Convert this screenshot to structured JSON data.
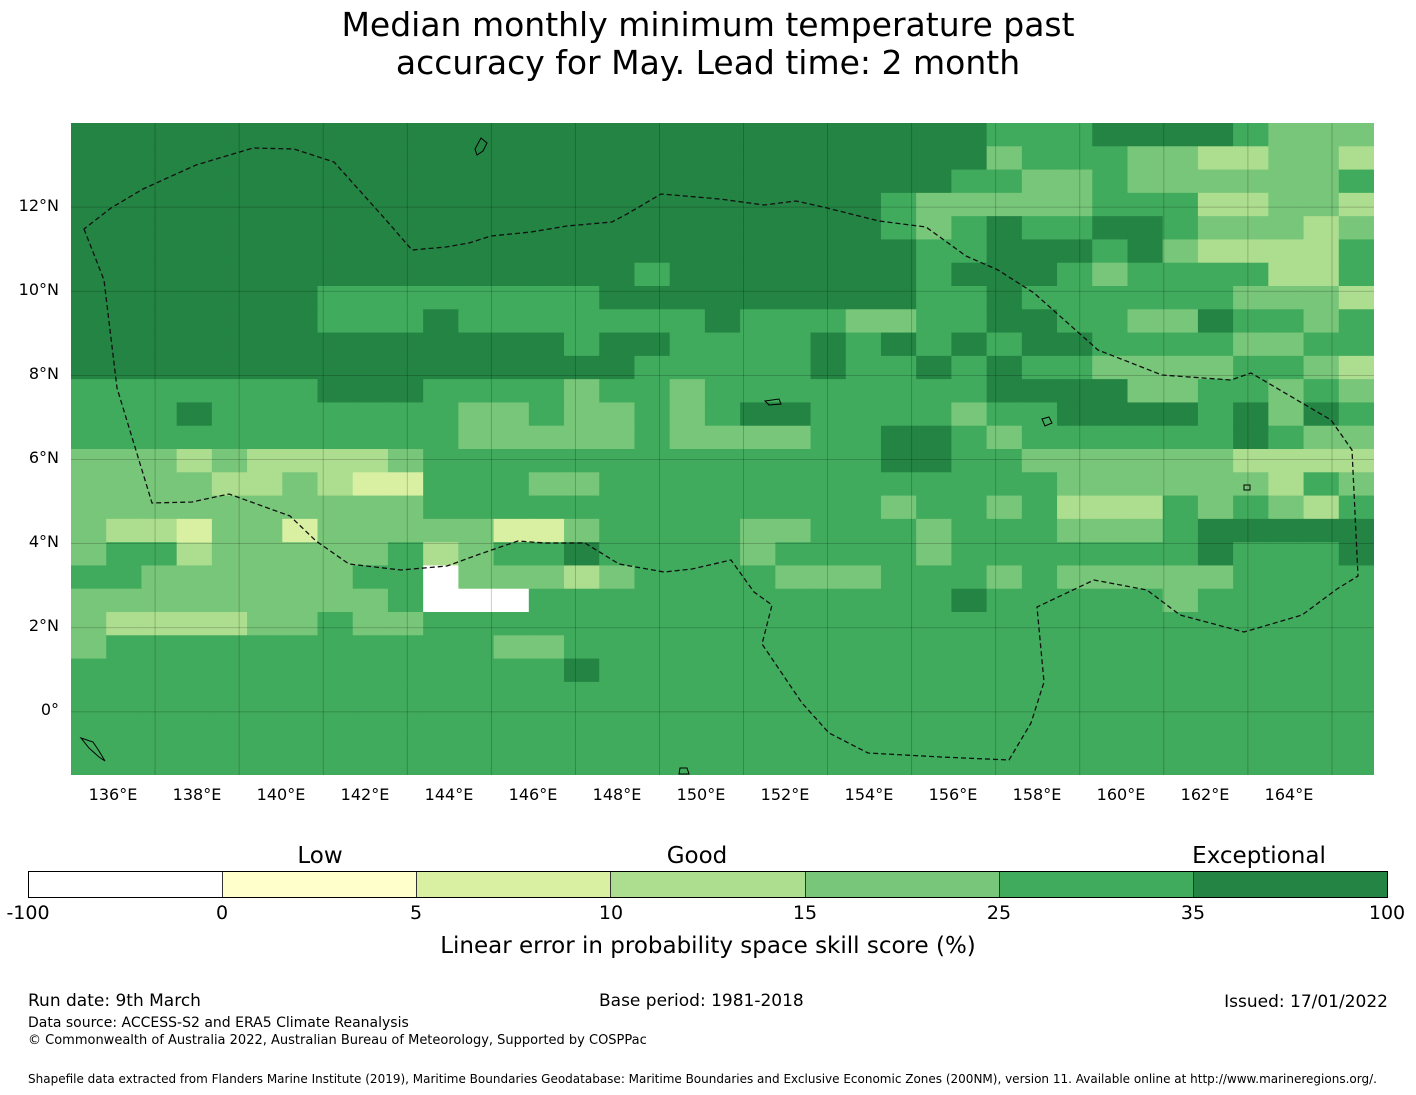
{
  "title": {
    "line1": "Median monthly minimum temperature past",
    "line2": "accuracy for May. Lead time: 2 month"
  },
  "map": {
    "lat_labels": [
      "12°N",
      "10°N",
      "8°N",
      "6°N",
      "4°N",
      "2°N",
      "0°"
    ],
    "lon_labels": [
      "136°E",
      "138°E",
      "140°E",
      "142°E",
      "144°E",
      "146°E",
      "148°E",
      "150°E",
      "152°E",
      "154°E",
      "156°E",
      "158°E",
      "160°E",
      "162°E",
      "164°E"
    ],
    "extent": {
      "lon_min": 134.0,
      "lon_max": 165.0,
      "lat_min": -1.5,
      "lat_max": 14.0
    },
    "grid_size": {
      "cols": 37,
      "rows": 28
    },
    "skill_grid_codes": [
      "6666666666666666666666666655566665444",
      "6666666666666666666666666645554433443",
      "6666666666666666666666666554454444445",
      "6666666666666666666666654444455533443",
      "6666666666666666666666654565566544434",
      "6666666666666666666666665566656433335",
      "6666666666666666566666665666545555335",
      "6666666555555556666666665565555554443",
      "6666666555655555556555445566554465545",
      "6666666666666656655556565656655554455",
      "6666666666666666555556556565544445543",
      "5555555666555545545555555566664455454",
      "5556555555544544545665555455666656465",
      "5555555555544444544445566545555556544",
      "4443433334555555555555566554444443333",
      "4444334322555445555555555555444444354",
      "4444444444555555555555545545333545435",
      "4332442444442245555445554555444566666",
      "4553444445345565555455554555555565556",
      "5544444455044434555544455545444445555",
      "4444444445000555555555555655555455555",
      "4333344544555555555555555555555555555",
      "4555555555554455555555555555555555555",
      "5555555555555565555555555555555555555",
      "5555555555555555555555555555555555555",
      "5555555555555555555555555555555555555",
      "5555555555555555555555555555555555555",
      "5555555555555555555555555555555555555"
    ]
  },
  "colorbar": {
    "category_labels": [
      "Low",
      "Good",
      "Exceptional"
    ],
    "ticks": [
      "-100",
      "0",
      "5",
      "10",
      "15",
      "25",
      "35",
      "100"
    ],
    "colors": [
      "#ffffff",
      "#ffffcc",
      "#d9f0a3",
      "#addd8e",
      "#78c679",
      "#41ab5d",
      "#238443"
    ],
    "title": "Linear error in probability space skill score (%)"
  },
  "footer": {
    "run_date": "Run date: 9th March",
    "base_period": "Base period: 1981-2018",
    "issued": "Issued: 17/01/2022",
    "data_source": "Data source: ACCESS-S2 and ERA5 Climate Reanalysis",
    "copyright": "© Commonwealth of Australia 2022, Australian Bureau of Meteorology, Supported by COSPPac",
    "shapefile": "Shapefile data extracted from Flanders Marine Institute (2019), Maritime Boundaries Geodatabase: Maritime Boundaries and Exclusive Economic Zones (200NM), version 11. Available online at http://www.marineregions.org/."
  }
}
